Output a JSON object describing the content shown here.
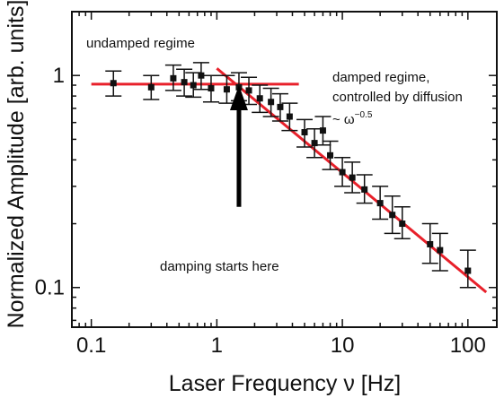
{
  "chart_data": {
    "type": "scatter",
    "xlabel": "Laser Frequency  ν [Hz]",
    "ylabel": "Normalized Amplitude [arb. units]",
    "xscale": "log",
    "yscale": "log",
    "xlim": [
      0.07,
      170
    ],
    "ylim": [
      0.065,
      2.0
    ],
    "grid": false,
    "x_ticks": [
      {
        "value": 0.1,
        "label": "0.1"
      },
      {
        "value": 1,
        "label": "1"
      },
      {
        "value": 10,
        "label": "10"
      },
      {
        "value": 100,
        "label": "100"
      }
    ],
    "y_ticks": [
      {
        "value": 0.1,
        "label": "0.1"
      },
      {
        "value": 1,
        "label": "1"
      }
    ],
    "series": [
      {
        "marker": "square",
        "color": "#111111",
        "points": [
          {
            "x": 0.15,
            "y": 0.92,
            "err_lo": 0.8,
            "err_hi": 1.05
          },
          {
            "x": 0.3,
            "y": 0.88,
            "err_lo": 0.77,
            "err_hi": 1.0
          },
          {
            "x": 0.45,
            "y": 0.97,
            "err_lo": 0.85,
            "err_hi": 1.12
          },
          {
            "x": 0.55,
            "y": 0.93,
            "err_lo": 0.8,
            "err_hi": 1.07
          },
          {
            "x": 0.65,
            "y": 0.9,
            "err_lo": 0.79,
            "err_hi": 1.03
          },
          {
            "x": 0.75,
            "y": 1.0,
            "err_lo": 0.86,
            "err_hi": 1.15
          },
          {
            "x": 0.9,
            "y": 0.87,
            "err_lo": 0.75,
            "err_hi": 1.0
          },
          {
            "x": 1.2,
            "y": 0.86,
            "err_lo": 0.74,
            "err_hi": 1.0
          },
          {
            "x": 1.5,
            "y": 0.88,
            "err_lo": 0.76,
            "err_hi": 1.03
          },
          {
            "x": 1.8,
            "y": 0.85,
            "err_lo": 0.73,
            "err_hi": 0.98
          },
          {
            "x": 2.2,
            "y": 0.78,
            "err_lo": 0.67,
            "err_hi": 0.9
          },
          {
            "x": 2.7,
            "y": 0.75,
            "err_lo": 0.64,
            "err_hi": 0.87
          },
          {
            "x": 3.2,
            "y": 0.71,
            "err_lo": 0.61,
            "err_hi": 0.82
          },
          {
            "x": 3.8,
            "y": 0.64,
            "err_lo": 0.55,
            "err_hi": 0.74
          },
          {
            "x": 5.0,
            "y": 0.54,
            "err_lo": 0.46,
            "err_hi": 0.62
          },
          {
            "x": 6.0,
            "y": 0.48,
            "err_lo": 0.41,
            "err_hi": 0.56
          },
          {
            "x": 7.0,
            "y": 0.55,
            "err_lo": 0.47,
            "err_hi": 0.64
          },
          {
            "x": 8.0,
            "y": 0.42,
            "err_lo": 0.36,
            "err_hi": 0.49
          },
          {
            "x": 10.0,
            "y": 0.35,
            "err_lo": 0.3,
            "err_hi": 0.41
          },
          {
            "x": 12.0,
            "y": 0.33,
            "err_lo": 0.28,
            "err_hi": 0.39
          },
          {
            "x": 15.0,
            "y": 0.29,
            "err_lo": 0.25,
            "err_hi": 0.34
          },
          {
            "x": 20.0,
            "y": 0.25,
            "err_lo": 0.21,
            "err_hi": 0.3
          },
          {
            "x": 25.0,
            "y": 0.22,
            "err_lo": 0.18,
            "err_hi": 0.27
          },
          {
            "x": 30.0,
            "y": 0.2,
            "err_lo": 0.17,
            "err_hi": 0.24
          },
          {
            "x": 50.0,
            "y": 0.16,
            "err_lo": 0.13,
            "err_hi": 0.2
          },
          {
            "x": 60.0,
            "y": 0.15,
            "err_lo": 0.12,
            "err_hi": 0.18
          },
          {
            "x": 100.0,
            "y": 0.12,
            "err_lo": 0.1,
            "err_hi": 0.15
          }
        ]
      }
    ],
    "fit_lines": [
      {
        "name": "undamped",
        "color": "#e8202a",
        "x": [
          0.1,
          4.5
        ],
        "y": [
          0.91,
          0.91
        ]
      },
      {
        "name": "damped",
        "color": "#e8202a",
        "x": [
          1.0,
          140.0
        ],
        "y": [
          1.08,
          0.095
        ]
      }
    ],
    "annotations": {
      "undamped": "undamped regime",
      "damped_line1": "damped regime,",
      "damped_line2": "controlled by diffusion",
      "power_base": "~ ω",
      "power_exp": "−0.5",
      "damping_starts": "damping starts here"
    },
    "arrow": {
      "x": 1.5,
      "y_from": 0.24,
      "y_to": 0.9
    }
  }
}
